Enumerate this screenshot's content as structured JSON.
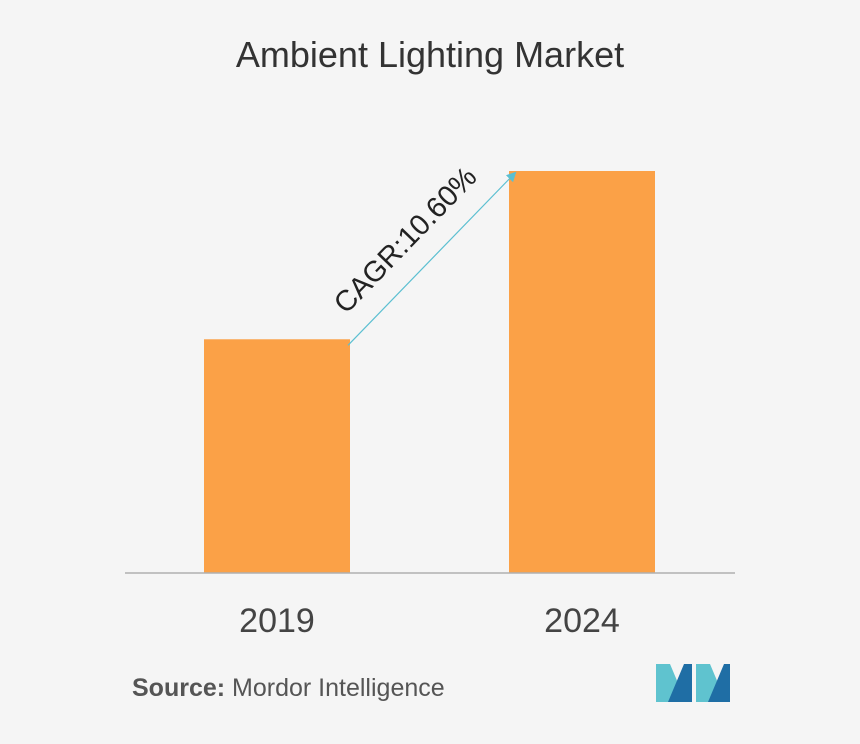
{
  "title": "Ambient Lighting Market",
  "source": {
    "label": "Source:",
    "text": "Mordor Intelligence"
  },
  "colors": {
    "bar": "#fba147",
    "arrow": "#5bbfd1",
    "axis": "#b0b0b0",
    "logo_dark": "#1f6ea5",
    "logo_light": "#5fc3cf"
  },
  "chart_data": {
    "type": "bar",
    "categories": [
      "2019",
      "2024"
    ],
    "values": [
      1.0,
      1.72
    ],
    "annotation": "CAGR:10.60%",
    "grid": false,
    "legend": "none"
  }
}
